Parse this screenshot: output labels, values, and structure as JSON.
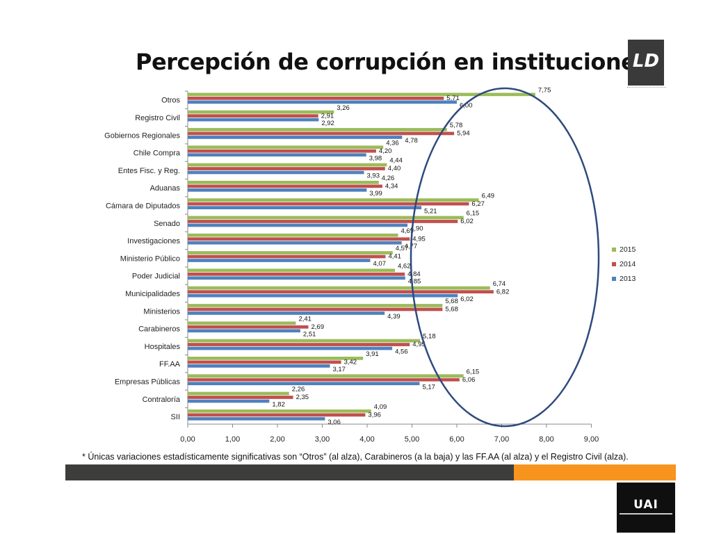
{
  "title": "Percepción de corrupción en instituciones",
  "footnote": "* Únicas variaciones estadísticamente significativas son “Otros” (al alza), Carabineros (a la baja) y las FF.AA (al alza) y el Registro Civil (alza).",
  "logos": {
    "top_right": "LD",
    "bottom_right": "UAI"
  },
  "colors": {
    "s2015": "#9bbb59",
    "s2014": "#c0504d",
    "s2013": "#4f81bd",
    "ellipse": "#2e4a7d",
    "footer_dark": "#3d3d3b",
    "footer_orange": "#f7941d"
  },
  "chart_data": {
    "type": "bar",
    "orientation": "horizontal",
    "categories": [
      "Otros",
      "Registro Civil",
      "Gobiernos Regionales",
      "Chile Compra",
      "Entes Fisc. y Reg.",
      "Aduanas",
      "Cámara de Diputados",
      "Senado",
      "Investigaciones",
      "Ministerio Público",
      "Poder Judicial",
      "Municipalidades",
      "Ministerios",
      "Carabineros",
      "Hospitales",
      "FF.AA",
      "Empresas Públicas",
      "Contraloría",
      "SII"
    ],
    "series": [
      {
        "name": "2015",
        "color": "#9bbb59",
        "values": [
          7.75,
          3.26,
          5.78,
          4.36,
          4.44,
          4.26,
          6.49,
          6.15,
          4.69,
          4.57,
          4.62,
          6.74,
          5.68,
          2.41,
          5.18,
          3.91,
          6.15,
          2.26,
          4.09
        ],
        "labels": [
          "7,75",
          "3,26",
          "5,78",
          "4,36",
          "4,44",
          "4,26",
          "6,49",
          "6,15",
          "4,69",
          "4,57",
          "4,62",
          "6,74",
          "5,68",
          "2,41",
          "5,18",
          "3,91",
          "6,15",
          "2,26",
          "4,09"
        ]
      },
      {
        "name": "2014",
        "color": "#c0504d",
        "values": [
          5.71,
          2.91,
          5.94,
          4.2,
          4.4,
          4.34,
          6.27,
          6.02,
          4.95,
          4.41,
          4.84,
          6.82,
          5.68,
          2.69,
          4.95,
          3.42,
          6.06,
          2.35,
          3.96
        ],
        "labels": [
          "5,71",
          "2,91",
          "5,94",
          "4,20",
          "4,40",
          "4,34",
          "6,27",
          "6,02",
          "4,95",
          "4,41",
          "4,84",
          "6,82",
          "5,68",
          "2,69",
          "4,95",
          "3,42",
          "6,06",
          "2,35",
          "3,96"
        ]
      },
      {
        "name": "2013",
        "color": "#4f81bd",
        "values": [
          6.0,
          2.92,
          4.78,
          3.98,
          3.93,
          3.99,
          5.21,
          4.9,
          4.77,
          4.07,
          4.85,
          6.02,
          4.39,
          2.51,
          4.56,
          3.17,
          5.17,
          1.82,
          3.06
        ],
        "labels": [
          "6,00",
          "2,92",
          "4,78",
          "3,98",
          "3,93",
          "3,99",
          "5,21",
          "4,90",
          "4,77",
          "4,07",
          "4,85",
          "6,02",
          "4,39",
          "2,51",
          "4,56",
          "3,17",
          "5,17",
          "1,82",
          "3,06"
        ]
      }
    ],
    "xlim": [
      0,
      9
    ],
    "xticks": [
      "0,00",
      "1,00",
      "2,00",
      "3,00",
      "4,00",
      "5,00",
      "6,00",
      "7,00",
      "8,00",
      "9,00"
    ],
    "legend": [
      "2015",
      "2014",
      "2013"
    ],
    "legend_position": "right",
    "annotation": "ellipse highlighting values above ~5",
    "grid": false
  }
}
